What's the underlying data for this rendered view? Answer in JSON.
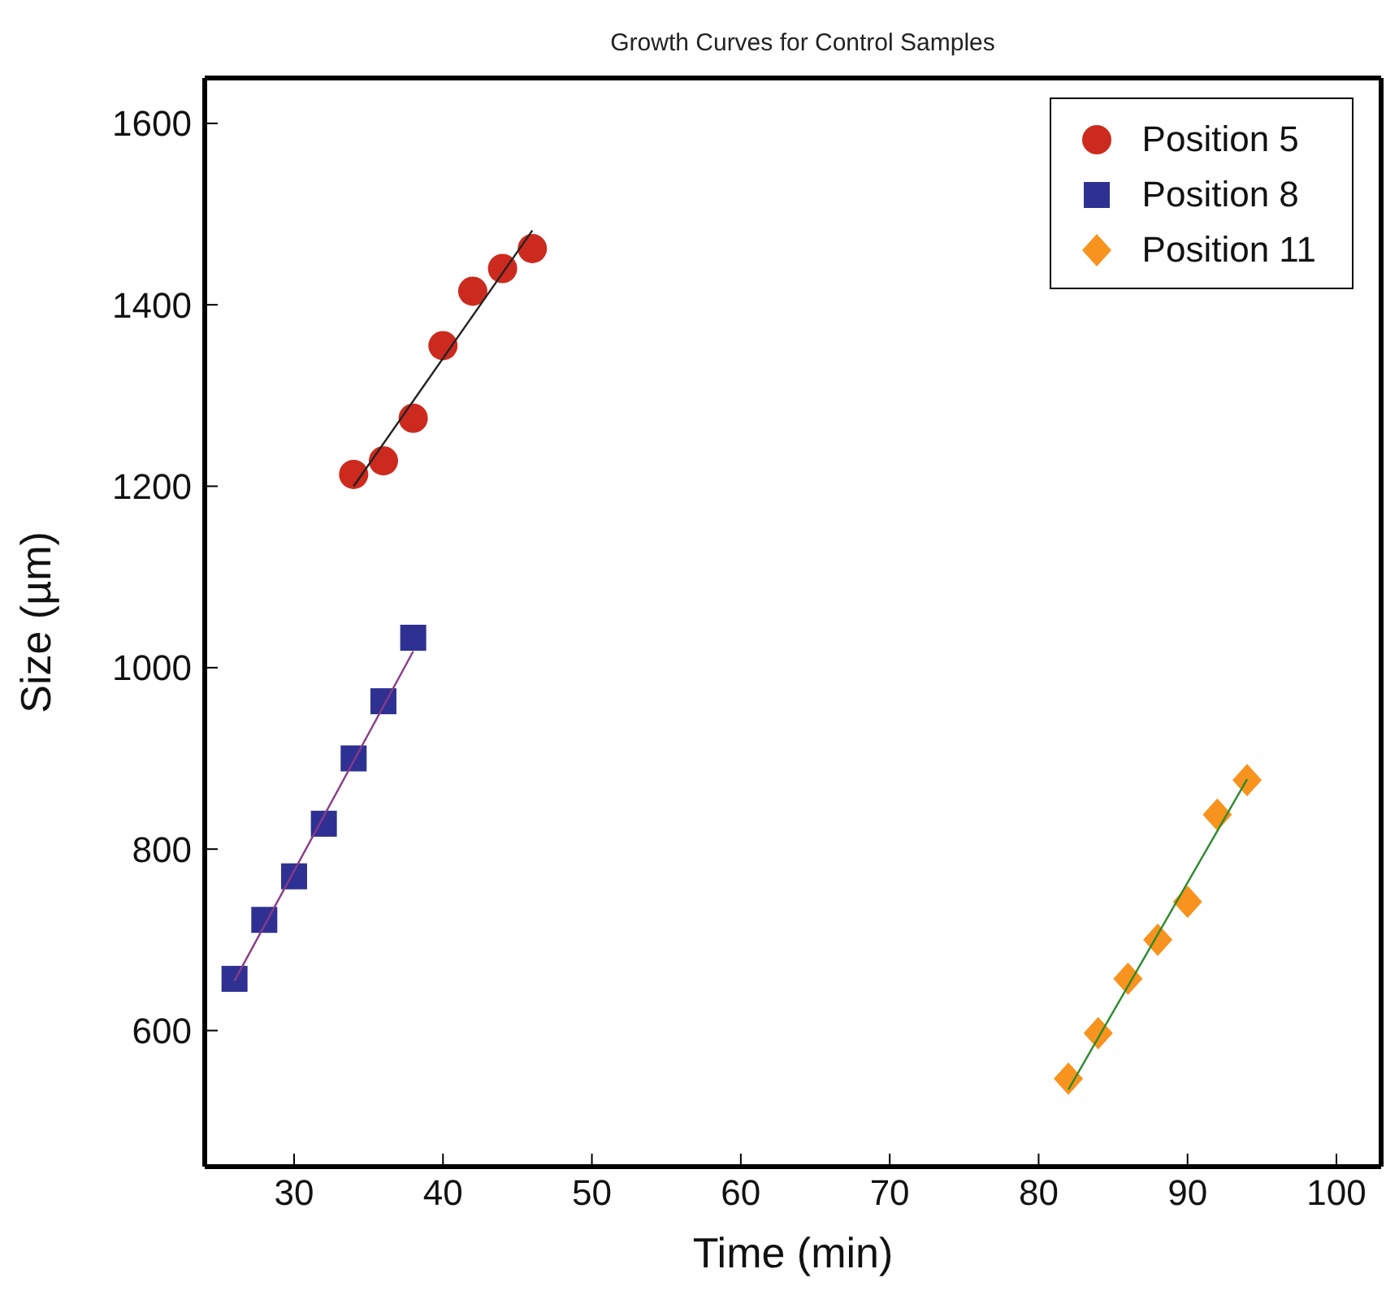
{
  "chart_data": {
    "type": "scatter",
    "title": "Growth Curves for Control Samples",
    "xlabel": "Time (min)",
    "ylabel": "Size (µm)",
    "xlim": [
      24,
      103
    ],
    "xticks": [
      30,
      40,
      50,
      60,
      70,
      80,
      90,
      100
    ],
    "ylim": [
      450,
      1650
    ],
    "yticks": [
      600,
      800,
      1000,
      1200,
      1400,
      1600
    ],
    "legend": "top right",
    "series": [
      {
        "name": "Position 5",
        "color": "#cc2a1e",
        "marker": "circle",
        "x": [
          34,
          36,
          38,
          40,
          42,
          44,
          46
        ],
        "values": [
          1213,
          1228,
          1275,
          1355,
          1415,
          1440,
          1462
        ]
      },
      {
        "name": "Position 8",
        "color": "#2e3192",
        "marker": "square",
        "x": [
          26,
          28,
          30,
          32,
          34,
          36,
          38
        ],
        "values": [
          657,
          722,
          770,
          828,
          900,
          963,
          1033
        ]
      },
      {
        "name": "Position 11",
        "color": "#f7931e",
        "marker": "diamond",
        "x": [
          82,
          84,
          86,
          88,
          90,
          92,
          94
        ],
        "values": [
          547,
          597,
          657,
          700,
          742,
          838,
          876
        ]
      },
      {
        "type": "line",
        "color": "#222222",
        "marker": "none",
        "x": [
          34,
          46
        ],
        "values": [
          1200,
          1482
        ]
      },
      {
        "type": "line",
        "color": "#8a3a8a",
        "marker": "none",
        "x": [
          26,
          38
        ],
        "values": [
          655,
          1018
        ]
      },
      {
        "type": "line",
        "color": "#2a8a2a",
        "marker": "none",
        "x": [
          82,
          94
        ],
        "values": [
          535,
          877
        ]
      }
    ]
  }
}
